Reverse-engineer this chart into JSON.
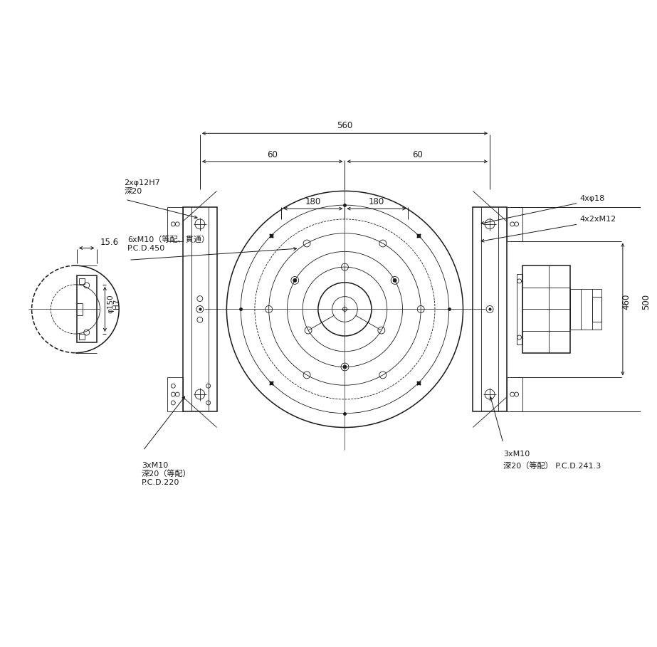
{
  "bg_color": "#ffffff",
  "line_color": "#1a1a1a",
  "lw_main": 1.1,
  "lw_thin": 0.6,
  "lw_dim": 0.7,
  "lw_cl": 0.55,
  "font_size": 8.5,
  "ann_fs": 8.0,
  "annotations": {
    "2xphi12H7": "2xφ12H7\n深20",
    "6xM10": "6xM10（等配、貫通）\nP.C.D.450",
    "3xM10_L": "3xM10\n深20（等配）\nP.C.D.220",
    "3xM10_R": "3xM10",
    "3xM10_R2": "深20（等配） P.C.D.241.3",
    "4xphi18": "4xφ18",
    "4x2xM12": "4x2xM12"
  },
  "dims": {
    "560": "560",
    "60": "60",
    "180": "180",
    "460": "460",
    "500": "500",
    "15p6": "15.6",
    "phi150H7_a": "φ150",
    "phi150H7_b": "H7"
  }
}
